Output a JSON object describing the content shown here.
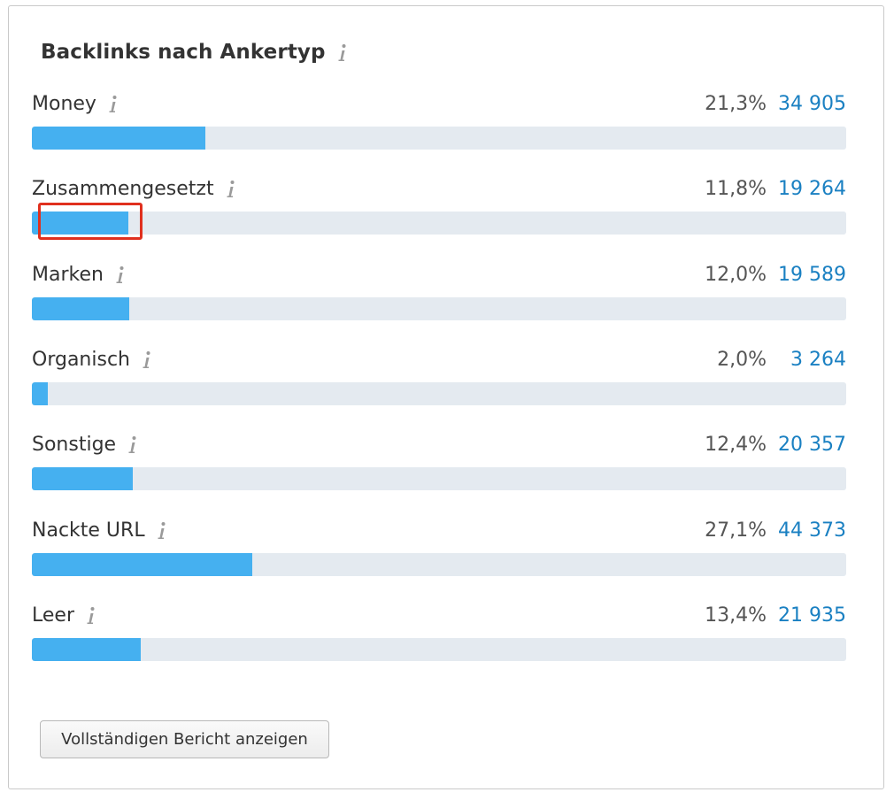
{
  "widget": {
    "title": "Backlinks nach Ankertyp",
    "info_icon": "info-icon",
    "accent_color": "#45b0f0",
    "track_color": "#e4eaf0",
    "count_color": "#1a80c2",
    "highlight_color": "#e0301e"
  },
  "anchor_types": [
    {
      "label": "Money",
      "percent": "21,3%",
      "count": "34 905",
      "fill_fraction": 0.213
    },
    {
      "label": "Zusammengesetzt",
      "percent": "11,8%",
      "count": "19 264",
      "fill_fraction": 0.118
    },
    {
      "label": "Marken",
      "percent": "12,0%",
      "count": "19 589",
      "fill_fraction": 0.12
    },
    {
      "label": "Organisch",
      "percent": "2,0%",
      "count": "3 264",
      "fill_fraction": 0.02
    },
    {
      "label": "Sonstige",
      "percent": "12,4%",
      "count": "20 357",
      "fill_fraction": 0.124
    },
    {
      "label": "Nackte URL",
      "percent": "27,1%",
      "count": "44 373",
      "fill_fraction": 0.271
    },
    {
      "label": "Leer",
      "percent": "13,4%",
      "count": "21 935",
      "fill_fraction": 0.134
    }
  ],
  "report_button": {
    "label": "Vollständigen Bericht anzeigen"
  }
}
